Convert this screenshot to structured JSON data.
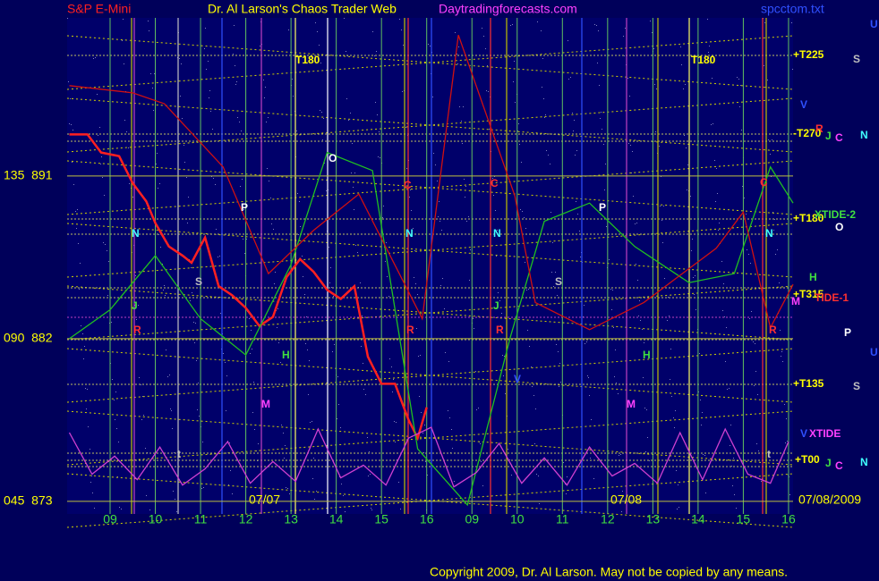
{
  "header": {
    "left": "S&P E-Mini",
    "title": "Dr. Al Larson's Chaos Trader Web",
    "site": "Daytradingforecasts.com",
    "file": "spcctom.txt"
  },
  "chart_data": {
    "type": "line",
    "xlim": [
      -0.95,
      15.1
    ],
    "xticks": [
      {
        "value": 0,
        "label": "09"
      },
      {
        "value": 1,
        "label": "10"
      },
      {
        "value": 2,
        "label": "11"
      },
      {
        "value": 3,
        "label": "12"
      },
      {
        "value": 4,
        "label": "13"
      },
      {
        "value": 5,
        "label": "14"
      },
      {
        "value": 6,
        "label": "15"
      },
      {
        "value": 7,
        "label": "16"
      },
      {
        "value": 8,
        "label": "09"
      },
      {
        "value": 9,
        "label": "10"
      },
      {
        "value": 10,
        "label": "11"
      },
      {
        "value": 11,
        "label": "12"
      },
      {
        "value": 12,
        "label": "13"
      },
      {
        "value": 13,
        "label": "14"
      },
      {
        "value": 14,
        "label": "15"
      },
      {
        "value": 15,
        "label": "16"
      }
    ],
    "ylim": [
      872.3,
      899.75
    ],
    "yticks": [
      {
        "value": 891,
        "label": "135  891"
      },
      {
        "value": 882,
        "label": "090  882"
      },
      {
        "value": 873,
        "label": "045  873"
      }
    ],
    "date_labels": [
      "07/07",
      "07/08",
      "07/08/2009"
    ],
    "series": [
      {
        "color": "#ff2020",
        "x": [
          -0.9,
          -0.5,
          -0.2,
          0.2,
          0.5,
          0.8,
          1.0,
          1.3,
          1.6,
          1.8,
          2.1,
          2.4,
          2.7,
          3.0,
          3.3,
          3.6,
          3.9,
          4.2,
          4.5,
          4.8,
          5.1,
          5.4,
          5.7,
          6.0,
          6.3,
          6.6,
          6.8,
          7.0
        ],
        "values": [
          893.3,
          893.3,
          892.3,
          892.1,
          890.6,
          889.6,
          888.4,
          887.1,
          886.6,
          886.2,
          887.6,
          884.9,
          884.4,
          883.7,
          882.7,
          883.2,
          885.4,
          886.4,
          885.7,
          884.7,
          884.2,
          884.9,
          881.0,
          879.5,
          879.5,
          877.5,
          876.5,
          878.2
        ]
      },
      {
        "color": "#20c020",
        "x": [
          -0.9,
          0,
          1,
          2,
          3,
          4,
          4.8,
          5.8,
          6.8,
          7.9,
          8.85,
          9.6,
          10.6,
          11.6,
          12.8,
          13.8,
          14.6,
          15.1
        ],
        "values": [
          882.0,
          883.6,
          886.6,
          883.1,
          881.1,
          886.1,
          892.3,
          891.3,
          875.9,
          872.8,
          882.1,
          888.5,
          889.5,
          887.1,
          885.1,
          885.6,
          891.5,
          889.5
        ]
      },
      {
        "color": "#d01010",
        "x": [
          -0.9,
          0.5,
          1.2,
          2.5,
          3.5,
          4.5,
          5.5,
          6.9,
          7.7,
          8.95,
          9.4,
          10.6,
          11.8,
          13.4,
          14.0,
          14.6,
          15.1
        ],
        "values": [
          896.0,
          895.6,
          895.0,
          891.5,
          885.6,
          888.0,
          890.0,
          883.1,
          898.8,
          889.9,
          884.0,
          882.5,
          884.0,
          887.0,
          889.0,
          882.6,
          885.0
        ]
      },
      {
        "color": "#d040d0",
        "x": [
          -0.9,
          -0.4,
          0.1,
          0.6,
          1.1,
          1.6,
          2.1,
          2.6,
          3.1,
          3.6,
          4.1,
          4.6,
          5.1,
          5.6,
          6.1,
          6.6,
          7.1,
          7.6,
          8.1,
          8.6,
          9.1,
          9.6,
          10.1,
          10.6,
          11.1,
          11.6,
          12.1,
          12.6,
          13.1,
          13.6,
          14.1,
          14.6,
          15.0
        ],
        "values": [
          876.8,
          874.5,
          875.5,
          874.2,
          876.0,
          873.9,
          874.8,
          876.3,
          874.0,
          875.2,
          874.1,
          877.0,
          874.3,
          875.0,
          873.9,
          876.5,
          877.1,
          873.8,
          874.6,
          876.2,
          874.0,
          875.4,
          873.9,
          876.0,
          874.4,
          875.1,
          874.0,
          876.8,
          874.2,
          877.0,
          874.5,
          874.0,
          876.3
        ]
      }
    ]
  },
  "annotations": [
    "T180",
    "T180",
    "+T225",
    "-T270",
    "+T180",
    "XTIDE-2",
    "+T315",
    "TIDE-1",
    "+T135",
    "XTIDE",
    "+T00",
    "U",
    "S",
    "V",
    "R",
    "J",
    "C",
    "N",
    "O",
    "H",
    "M",
    "P",
    "U",
    "S",
    "V",
    "J",
    "C",
    "N",
    "O",
    "C",
    "C",
    "C",
    "P",
    "P",
    "N",
    "N",
    "N",
    "N",
    "S",
    "S",
    "J",
    "J",
    "R",
    "R",
    "R",
    "R",
    "H",
    "H",
    "V",
    "M",
    "M",
    "t",
    "t"
  ],
  "footer": "Copyright 2009, Dr. Al Larson. May not be copied by any means."
}
